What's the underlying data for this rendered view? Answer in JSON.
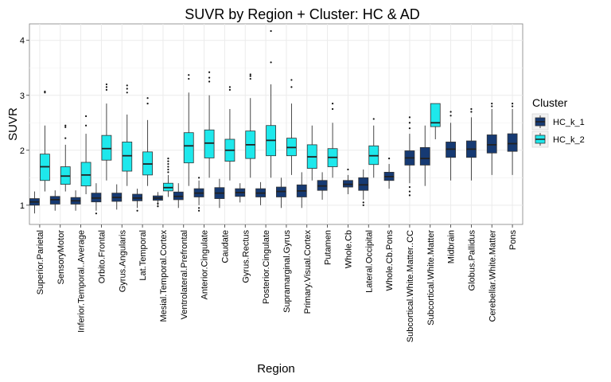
{
  "chart_data": {
    "type": "box",
    "title": "SUVR by Region + Cluster: HC & AD",
    "xlabel": "Region",
    "ylabel": "SUVR",
    "ylim": [
      0.65,
      4.3
    ],
    "yticks": [
      1,
      2,
      3,
      4
    ],
    "grid": true,
    "legend": {
      "title": "Cluster",
      "position": "right",
      "entries": [
        {
          "name": "HC_k_1",
          "color": "#163a73"
        },
        {
          "name": "HC_k_2",
          "color": "#1ee8ec"
        }
      ]
    },
    "regions": [
      "Superior.Parietal",
      "SensoryMotor",
      "Inferior.Temporal..Average",
      "Orbito.Frontal",
      "Gyrus.Angularis",
      "Lat.Temporal",
      "Mesial.Temporal.Cortex",
      "Ventrolateral.Prefrontal",
      "Anterior.Cingulate",
      "Caudate",
      "Gyrus.Rectus",
      "Posterior.Cingulate",
      "Supramarginal.Gyrus",
      "Primary.Visual.Cortex",
      "Putamen",
      "Whole.Cb",
      "Lateral.Occipital",
      "Whole.Cb.Pons",
      "Subcortical.White.Matter..CC",
      "Subcortical.White.Matter",
      "Midbrain",
      "Globus.Pallidus",
      "Cerebellar.White.Matter",
      "Pons"
    ],
    "boxes": [
      {
        "region": 0,
        "cluster": "HC_k_1",
        "min": 0.85,
        "q1": 1.0,
        "median": 1.06,
        "q3": 1.12,
        "max": 1.25,
        "outliers": []
      },
      {
        "region": 0,
        "cluster": "HC_k_2",
        "min": 1.25,
        "q1": 1.45,
        "median": 1.7,
        "q3": 1.93,
        "max": 2.45,
        "outliers": [
          3.05,
          3.07
        ]
      },
      {
        "region": 1,
        "cluster": "HC_k_1",
        "min": 0.9,
        "q1": 1.02,
        "median": 1.1,
        "q3": 1.16,
        "max": 1.27,
        "outliers": []
      },
      {
        "region": 1,
        "cluster": "HC_k_2",
        "min": 1.25,
        "q1": 1.38,
        "median": 1.53,
        "q3": 1.7,
        "max": 2.1,
        "outliers": [
          2.22,
          2.42,
          2.45
        ]
      },
      {
        "region": 2,
        "cluster": "HC_k_1",
        "min": 0.9,
        "q1": 1.02,
        "median": 1.08,
        "q3": 1.14,
        "max": 1.27,
        "outliers": []
      },
      {
        "region": 2,
        "cluster": "HC_k_2",
        "min": 1.2,
        "q1": 1.35,
        "median": 1.55,
        "q3": 1.78,
        "max": 2.3,
        "outliers": [
          2.45,
          2.62
        ]
      },
      {
        "region": 3,
        "cluster": "HC_k_1",
        "min": 0.9,
        "q1": 1.06,
        "median": 1.13,
        "q3": 1.22,
        "max": 1.4,
        "outliers": [
          0.85
        ]
      },
      {
        "region": 3,
        "cluster": "HC_k_2",
        "min": 1.45,
        "q1": 1.82,
        "median": 2.03,
        "q3": 2.27,
        "max": 2.85,
        "outliers": [
          3.1,
          3.15,
          3.2
        ]
      },
      {
        "region": 4,
        "cluster": "HC_k_1",
        "min": 0.92,
        "q1": 1.07,
        "median": 1.14,
        "q3": 1.22,
        "max": 1.38,
        "outliers": []
      },
      {
        "region": 4,
        "cluster": "HC_k_2",
        "min": 1.35,
        "q1": 1.62,
        "median": 1.9,
        "q3": 2.15,
        "max": 2.65,
        "outliers": [
          3.05,
          3.12,
          3.18
        ]
      },
      {
        "region": 5,
        "cluster": "HC_k_1",
        "min": 0.95,
        "q1": 1.08,
        "median": 1.13,
        "q3": 1.2,
        "max": 1.3,
        "outliers": [
          0.9
        ]
      },
      {
        "region": 5,
        "cluster": "HC_k_2",
        "min": 1.35,
        "q1": 1.55,
        "median": 1.75,
        "q3": 1.97,
        "max": 2.55,
        "outliers": [
          2.85,
          2.95
        ]
      },
      {
        "region": 6,
        "cluster": "HC_k_1",
        "min": 1.0,
        "q1": 1.09,
        "median": 1.13,
        "q3": 1.17,
        "max": 1.24,
        "outliers": [
          0.98,
          1.03
        ]
      },
      {
        "region": 6,
        "cluster": "HC_k_2",
        "min": 1.15,
        "q1": 1.26,
        "median": 1.32,
        "q3": 1.4,
        "max": 1.55,
        "outliers": [
          1.6,
          1.65,
          1.7,
          1.75,
          1.8,
          1.85
        ]
      },
      {
        "region": 7,
        "cluster": "HC_k_1",
        "min": 0.95,
        "q1": 1.1,
        "median": 1.16,
        "q3": 1.24,
        "max": 1.4,
        "outliers": []
      },
      {
        "region": 7,
        "cluster": "HC_k_2",
        "min": 1.35,
        "q1": 1.77,
        "median": 2.08,
        "q3": 2.32,
        "max": 3.05,
        "outliers": [
          3.3,
          3.37
        ]
      },
      {
        "region": 8,
        "cluster": "HC_k_1",
        "min": 1.0,
        "q1": 1.15,
        "median": 1.22,
        "q3": 1.3,
        "max": 1.45,
        "outliers": [
          0.9,
          0.95,
          1.5
        ]
      },
      {
        "region": 8,
        "cluster": "HC_k_2",
        "min": 1.5,
        "q1": 1.86,
        "median": 2.13,
        "q3": 2.37,
        "max": 3.0,
        "outliers": [
          3.25,
          3.32,
          3.42
        ]
      },
      {
        "region": 9,
        "cluster": "HC_k_1",
        "min": 0.95,
        "q1": 1.12,
        "median": 1.22,
        "q3": 1.32,
        "max": 1.48,
        "outliers": []
      },
      {
        "region": 9,
        "cluster": "HC_k_2",
        "min": 1.45,
        "q1": 1.8,
        "median": 2.0,
        "q3": 2.2,
        "max": 2.75,
        "outliers": [
          3.1,
          3.15
        ]
      },
      {
        "region": 10,
        "cluster": "HC_k_1",
        "min": 1.05,
        "q1": 1.16,
        "median": 1.23,
        "q3": 1.3,
        "max": 1.4,
        "outliers": []
      },
      {
        "region": 10,
        "cluster": "HC_k_2",
        "min": 1.5,
        "q1": 1.85,
        "median": 2.1,
        "q3": 2.35,
        "max": 2.95,
        "outliers": [
          3.3,
          3.35,
          3.38
        ]
      },
      {
        "region": 11,
        "cluster": "HC_k_1",
        "min": 1.0,
        "q1": 1.15,
        "median": 1.22,
        "q3": 1.3,
        "max": 1.42,
        "outliers": []
      },
      {
        "region": 11,
        "cluster": "HC_k_2",
        "min": 1.5,
        "q1": 1.9,
        "median": 2.18,
        "q3": 2.45,
        "max": 3.2,
        "outliers": [
          3.6,
          4.17
        ]
      },
      {
        "region": 12,
        "cluster": "HC_k_1",
        "min": 0.95,
        "q1": 1.15,
        "median": 1.25,
        "q3": 1.33,
        "max": 1.5,
        "outliers": []
      },
      {
        "region": 12,
        "cluster": "HC_k_2",
        "min": 1.55,
        "q1": 1.9,
        "median": 2.05,
        "q3": 2.22,
        "max": 2.85,
        "outliers": [
          3.15,
          3.28
        ]
      },
      {
        "region": 13,
        "cluster": "HC_k_1",
        "min": 0.95,
        "q1": 1.15,
        "median": 1.26,
        "q3": 1.37,
        "max": 1.6,
        "outliers": []
      },
      {
        "region": 13,
        "cluster": "HC_k_2",
        "min": 1.45,
        "q1": 1.67,
        "median": 1.88,
        "q3": 2.1,
        "max": 2.45,
        "outliers": []
      },
      {
        "region": 14,
        "cluster": "HC_k_1",
        "min": 1.1,
        "q1": 1.27,
        "median": 1.35,
        "q3": 1.45,
        "max": 1.6,
        "outliers": []
      },
      {
        "region": 14,
        "cluster": "HC_k_2",
        "min": 1.5,
        "q1": 1.7,
        "median": 1.87,
        "q3": 2.03,
        "max": 2.5,
        "outliers": [
          2.75,
          2.85
        ]
      },
      {
        "region": 15,
        "cluster": "HC_k_1",
        "min": 1.2,
        "q1": 1.33,
        "median": 1.38,
        "q3": 1.45,
        "max": 1.55,
        "outliers": [
          1.65
        ]
      },
      {
        "region": 15,
        "cluster": "HC_k_2",
        "min": null,
        "q1": null,
        "median": null,
        "q3": null,
        "max": null,
        "outliers": []
      },
      {
        "region": 16,
        "cluster": "HC_k_1",
        "min": 1.1,
        "q1": 1.27,
        "median": 1.37,
        "q3": 1.5,
        "max": 1.65,
        "outliers": [
          1.0,
          1.05
        ]
      },
      {
        "region": 16,
        "cluster": "HC_k_2",
        "min": 1.5,
        "q1": 1.74,
        "median": 1.9,
        "q3": 2.08,
        "max": 2.45,
        "outliers": [
          2.57
        ]
      },
      {
        "region": 17,
        "cluster": "HC_k_1",
        "min": 1.3,
        "q1": 1.45,
        "median": 1.52,
        "q3": 1.6,
        "max": 1.75,
        "outliers": [
          1.85
        ]
      },
      {
        "region": 17,
        "cluster": "HC_k_2",
        "min": null,
        "q1": null,
        "median": null,
        "q3": null,
        "max": null,
        "outliers": []
      },
      {
        "region": 18,
        "cluster": "HC_k_1",
        "min": 1.4,
        "q1": 1.73,
        "median": 1.86,
        "q3": 1.99,
        "max": 2.3,
        "outliers": [
          1.18,
          1.25,
          1.33,
          2.4,
          2.5,
          2.6
        ]
      },
      {
        "region": 18,
        "cluster": "HC_k_2",
        "min": null,
        "q1": null,
        "median": null,
        "q3": null,
        "max": null,
        "outliers": []
      },
      {
        "region": 19,
        "cluster": "HC_k_1",
        "min": 1.35,
        "q1": 1.73,
        "median": 1.85,
        "q3": 2.05,
        "max": 2.45,
        "outliers": []
      },
      {
        "region": 19,
        "cluster": "HC_k_2",
        "min": 2.2,
        "q1": 2.43,
        "median": 2.5,
        "q3": 2.85,
        "max": 2.85,
        "outliers": []
      },
      {
        "region": 20,
        "cluster": "HC_k_1",
        "min": 1.45,
        "q1": 1.87,
        "median": 2.02,
        "q3": 2.15,
        "max": 2.5,
        "outliers": [
          2.63,
          2.7
        ]
      },
      {
        "region": 20,
        "cluster": "HC_k_2",
        "min": null,
        "q1": null,
        "median": null,
        "q3": null,
        "max": null,
        "outliers": []
      },
      {
        "region": 21,
        "cluster": "HC_k_1",
        "min": 1.45,
        "q1": 1.87,
        "median": 2.02,
        "q3": 2.17,
        "max": 2.6,
        "outliers": [
          2.7,
          2.75
        ]
      },
      {
        "region": 21,
        "cluster": "HC_k_2",
        "min": null,
        "q1": null,
        "median": null,
        "q3": null,
        "max": null,
        "outliers": []
      },
      {
        "region": 22,
        "cluster": "HC_k_1",
        "min": 1.55,
        "q1": 1.95,
        "median": 2.1,
        "q3": 2.28,
        "max": 2.75,
        "outliers": [
          2.8,
          2.85
        ]
      },
      {
        "region": 22,
        "cluster": "HC_k_2",
        "min": null,
        "q1": null,
        "median": null,
        "q3": null,
        "max": null,
        "outliers": []
      },
      {
        "region": 23,
        "cluster": "HC_k_1",
        "min": 1.55,
        "q1": 1.98,
        "median": 2.12,
        "q3": 2.3,
        "max": 2.75,
        "outliers": [
          2.8,
          2.85
        ]
      },
      {
        "region": 23,
        "cluster": "HC_k_2",
        "min": null,
        "q1": null,
        "median": null,
        "q3": null,
        "max": null,
        "outliers": []
      }
    ]
  }
}
